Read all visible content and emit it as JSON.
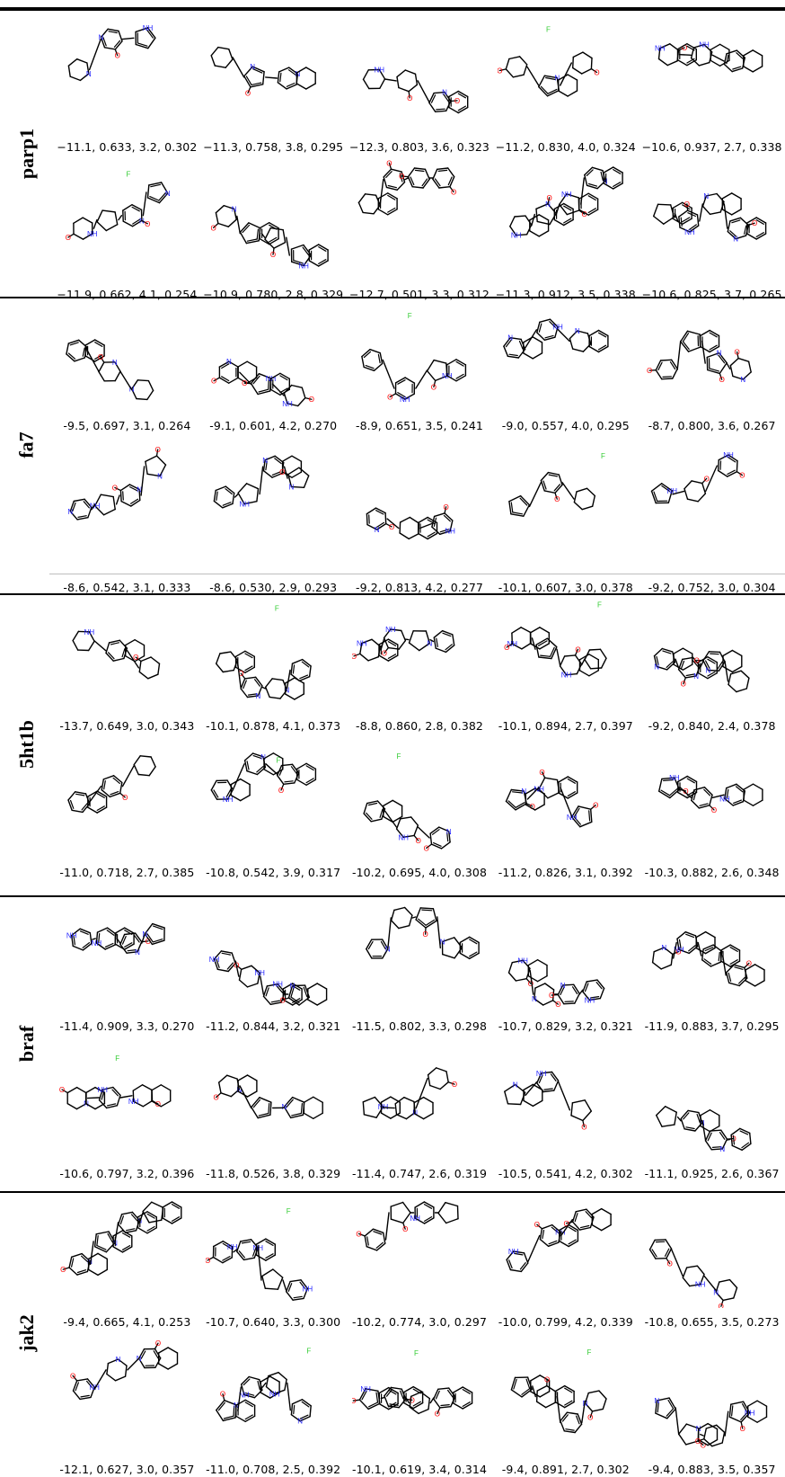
{
  "sections": [
    {
      "target": "parp1",
      "rows": [
        [
          "−11.1, 0.633, 3.2, 0.302",
          "−11.3, 0.758, 3.8, 0.295",
          "−12.3, 0.803, 3.6, 0.323",
          "−11.2, 0.830, 4.0, 0.324",
          "−10.6, 0.937, 2.7, 0.338"
        ],
        [
          "−11.9, 0.662, 4.1, 0.254",
          "−10.9, 0.780, 2.8, 0.329",
          "−12.7, 0.501, 3.3, 0.312",
          "−11.3, 0.912, 3.5, 0.338",
          "−10.6, 0.825, 3.7, 0.265"
        ]
      ]
    },
    {
      "target": "fa7",
      "rows": [
        [
          "-9.5, 0.697, 3.1, 0.264",
          "-9.1, 0.601, 4.2, 0.270",
          "-8.9, 0.651, 3.5, 0.241",
          "-9.0, 0.557, 4.0, 0.295",
          "-8.7, 0.800, 3.6, 0.267"
        ],
        [
          "-8.6, 0.542, 3.1, 0.333",
          "-8.6, 0.530, 2.9, 0.293",
          "-9.2, 0.813, 4.2, 0.277",
          "-10.1, 0.607, 3.0, 0.378",
          "-9.2, 0.752, 3.0, 0.304"
        ]
      ]
    },
    {
      "target": "5ht1b",
      "rows": [
        [
          "-13.7, 0.649, 3.0, 0.343",
          "-10.1, 0.878, 4.1, 0.373",
          "-8.8, 0.860, 2.8, 0.382",
          "-10.1, 0.894, 2.7, 0.397",
          "-9.2, 0.840, 2.4, 0.378"
        ],
        [
          "-11.0, 0.718, 2.7, 0.385",
          "-10.8, 0.542, 3.9, 0.317",
          "-10.2, 0.695, 4.0, 0.308",
          "-11.2, 0.826, 3.1, 0.392",
          "-10.3, 0.882, 2.6, 0.348"
        ]
      ]
    },
    {
      "target": "braf",
      "rows": [
        [
          "-11.4, 0.909, 3.3, 0.270",
          "-11.2, 0.844, 3.2, 0.321",
          "-11.5, 0.802, 3.3, 0.298",
          "-10.7, 0.829, 3.2, 0.321",
          "-11.9, 0.883, 3.7, 0.295"
        ],
        [
          "-10.6, 0.797, 3.2, 0.396",
          "-11.8, 0.526, 3.8, 0.329",
          "-11.4, 0.747, 2.6, 0.319",
          "-10.5, 0.541, 4.2, 0.302",
          "-11.1, 0.925, 2.6, 0.367"
        ]
      ]
    },
    {
      "target": "jak2",
      "rows": [
        [
          "-9.4, 0.665, 4.1, 0.253",
          "-10.7, 0.640, 3.3, 0.300",
          "-10.2, 0.774, 3.0, 0.297",
          "-10.0, 0.799, 4.2, 0.339",
          "-10.8, 0.655, 3.5, 0.273"
        ],
        [
          "-12.1, 0.627, 3.0, 0.357",
          "-11.0, 0.708, 2.5, 0.392",
          "-10.1, 0.619, 3.4, 0.314",
          "-9.4, 0.891, 2.7, 0.302",
          "-9.4, 0.883, 3.5, 0.357"
        ]
      ]
    }
  ],
  "colors": {
    "bond": "#000000",
    "nitrogen": "#1f1fff",
    "oxygen": "#ff0000",
    "fluorine": "#33cc33",
    "chlorine": "#1fb01f",
    "sulfur": "#c8b400"
  }
}
